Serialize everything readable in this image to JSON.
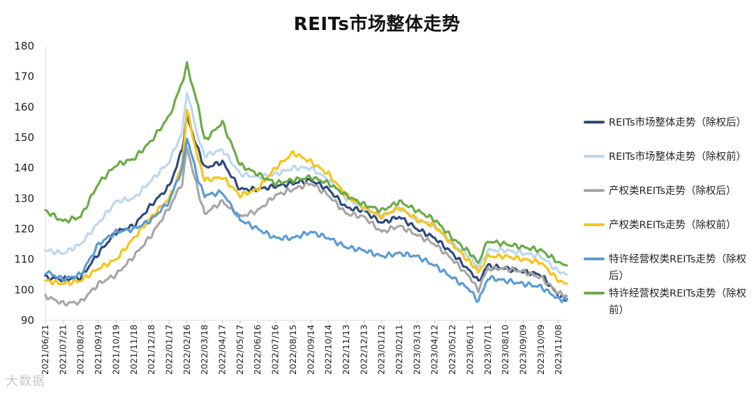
{
  "chart_data": {
    "type": "line",
    "title": "REITs市场整体走势",
    "xlabel": "",
    "ylabel": "",
    "ylim": [
      90,
      180
    ],
    "yticks": [
      90,
      100,
      110,
      120,
      130,
      140,
      150,
      160,
      170,
      180
    ],
    "x_start": "2021/06/21",
    "x_end": "2023/11/22",
    "xtick_labels": [
      "2021/06/21",
      "2021/07/21",
      "2021/08/20",
      "2021/09/19",
      "2021/10/19",
      "2021/11/18",
      "2021/12/18",
      "2022/01/17",
      "2022/02/16",
      "2022/03/18",
      "2022/04/17",
      "2022/05/17",
      "2022/06/16",
      "2022/07/16",
      "2022/08/15",
      "2022/09/14",
      "2022/10/14",
      "2022/11/13",
      "2022/12/13",
      "2023/01/12",
      "2023/02/11",
      "2023/03/13",
      "2023/04/12",
      "2023/05/12",
      "2023/06/11",
      "2023/07/11",
      "2023/08/10",
      "2023/09/09",
      "2023/10/09",
      "2023/11/08"
    ],
    "legend_position": "right",
    "grid": false,
    "series": [
      {
        "name": "REITs市场整体走势（除权后）",
        "color": "#2e4a7e",
        "points": [
          [
            "2021/06/21",
            104
          ],
          [
            "2021/07/21",
            103.5
          ],
          [
            "2021/08/20",
            104
          ],
          [
            "2021/09/19",
            112
          ],
          [
            "2021/10/19",
            119
          ],
          [
            "2021/11/18",
            121
          ],
          [
            "2021/12/18",
            128
          ],
          [
            "2022/01/17",
            134
          ],
          [
            "2022/02/08",
            146
          ],
          [
            "2022/02/16",
            157
          ],
          [
            "2022/03/07",
            146
          ],
          [
            "2022/03/18",
            140
          ],
          [
            "2022/04/17",
            142
          ],
          [
            "2022/05/17",
            133
          ],
          [
            "2022/06/16",
            133
          ],
          [
            "2022/07/16",
            134
          ],
          [
            "2022/08/15",
            135
          ],
          [
            "2022/09/14",
            136
          ],
          [
            "2022/10/14",
            133
          ],
          [
            "2022/11/13",
            127
          ],
          [
            "2022/12/13",
            126
          ],
          [
            "2023/01/12",
            122
          ],
          [
            "2023/02/11",
            124
          ],
          [
            "2023/03/13",
            120
          ],
          [
            "2023/04/12",
            117
          ],
          [
            "2023/05/12",
            112
          ],
          [
            "2023/06/11",
            106
          ],
          [
            "2023/06/25",
            103
          ],
          [
            "2023/07/11",
            108
          ],
          [
            "2023/08/10",
            107
          ],
          [
            "2023/09/09",
            106
          ],
          [
            "2023/10/09",
            105
          ],
          [
            "2023/11/08",
            98
          ],
          [
            "2023/11/22",
            97
          ]
        ]
      },
      {
        "name": "REITs市场整体走势（除权前）",
        "color": "#bcd7ef",
        "points": [
          [
            "2021/06/21",
            113
          ],
          [
            "2021/07/21",
            112
          ],
          [
            "2021/08/20",
            115
          ],
          [
            "2021/09/19",
            122
          ],
          [
            "2021/10/19",
            129
          ],
          [
            "2021/11/18",
            130
          ],
          [
            "2021/12/18",
            136
          ],
          [
            "2022/01/17",
            142
          ],
          [
            "2022/02/08",
            152
          ],
          [
            "2022/02/16",
            165
          ],
          [
            "2022/03/07",
            150
          ],
          [
            "2022/03/18",
            144
          ],
          [
            "2022/04/17",
            146
          ],
          [
            "2022/05/17",
            138
          ],
          [
            "2022/06/16",
            137
          ],
          [
            "2022/07/16",
            138
          ],
          [
            "2022/08/15",
            140
          ],
          [
            "2022/09/14",
            140
          ],
          [
            "2022/10/14",
            136
          ],
          [
            "2022/11/13",
            130
          ],
          [
            "2022/12/13",
            127
          ],
          [
            "2023/01/12",
            124
          ],
          [
            "2023/02/11",
            127
          ],
          [
            "2023/03/13",
            123
          ],
          [
            "2023/04/12",
            121
          ],
          [
            "2023/05/12",
            115
          ],
          [
            "2023/06/11",
            111
          ],
          [
            "2023/06/25",
            107
          ],
          [
            "2023/07/11",
            113
          ],
          [
            "2023/08/10",
            113
          ],
          [
            "2023/09/09",
            112
          ],
          [
            "2023/10/09",
            111
          ],
          [
            "2023/11/08",
            106
          ],
          [
            "2023/11/22",
            105
          ]
        ]
      },
      {
        "name": "产权类REITs走势（除权后）",
        "color": "#a6a6a6",
        "points": [
          [
            "2021/06/21",
            98
          ],
          [
            "2021/07/21",
            95.5
          ],
          [
            "2021/08/20",
            96
          ],
          [
            "2021/09/19",
            102
          ],
          [
            "2021/10/19",
            105
          ],
          [
            "2021/11/18",
            111
          ],
          [
            "2021/12/18",
            118
          ],
          [
            "2022/01/17",
            127
          ],
          [
            "2022/02/08",
            135
          ],
          [
            "2022/02/16",
            147
          ],
          [
            "2022/03/07",
            132
          ],
          [
            "2022/03/18",
            125
          ],
          [
            "2022/04/17",
            129
          ],
          [
            "2022/05/17",
            124
          ],
          [
            "2022/06/16",
            126
          ],
          [
            "2022/07/16",
            131
          ],
          [
            "2022/08/15",
            133
          ],
          [
            "2022/09/14",
            135
          ],
          [
            "2022/10/14",
            131
          ],
          [
            "2022/11/13",
            125
          ],
          [
            "2022/12/13",
            124
          ],
          [
            "2023/01/12",
            119
          ],
          [
            "2023/02/11",
            121
          ],
          [
            "2023/03/13",
            118
          ],
          [
            "2023/04/12",
            115
          ],
          [
            "2023/05/12",
            110
          ],
          [
            "2023/06/11",
            104
          ],
          [
            "2023/06/25",
            100
          ],
          [
            "2023/07/11",
            107
          ],
          [
            "2023/08/10",
            107
          ],
          [
            "2023/09/09",
            106
          ],
          [
            "2023/10/09",
            104
          ],
          [
            "2023/11/08",
            99
          ],
          [
            "2023/11/22",
            98
          ]
        ]
      },
      {
        "name": "产权类REITs走势（除权前）",
        "color": "#f5c518",
        "points": [
          [
            "2021/06/21",
            103
          ],
          [
            "2021/07/21",
            102
          ],
          [
            "2021/08/20",
            103
          ],
          [
            "2021/09/19",
            107
          ],
          [
            "2021/10/19",
            110
          ],
          [
            "2021/11/18",
            117
          ],
          [
            "2021/12/18",
            124
          ],
          [
            "2022/01/17",
            130
          ],
          [
            "2022/02/08",
            141
          ],
          [
            "2022/02/16",
            159
          ],
          [
            "2022/03/07",
            143
          ],
          [
            "2022/03/18",
            136
          ],
          [
            "2022/04/17",
            137
          ],
          [
            "2022/05/17",
            131
          ],
          [
            "2022/06/16",
            133
          ],
          [
            "2022/07/16",
            140
          ],
          [
            "2022/08/15",
            145
          ],
          [
            "2022/09/14",
            142
          ],
          [
            "2022/10/14",
            138
          ],
          [
            "2022/11/13",
            131
          ],
          [
            "2022/12/13",
            127
          ],
          [
            "2023/01/12",
            124
          ],
          [
            "2023/02/11",
            127
          ],
          [
            "2023/03/13",
            123
          ],
          [
            "2023/04/12",
            121
          ],
          [
            "2023/05/12",
            115
          ],
          [
            "2023/06/11",
            109
          ],
          [
            "2023/06/25",
            106
          ],
          [
            "2023/07/11",
            111
          ],
          [
            "2023/08/10",
            111
          ],
          [
            "2023/09/09",
            110
          ],
          [
            "2023/10/09",
            109
          ],
          [
            "2023/11/08",
            103
          ],
          [
            "2023/11/22",
            102
          ]
        ]
      },
      {
        "name": "特许经营权类REITs走势（除权后）",
        "color": "#5b9bd5",
        "points": [
          [
            "2021/06/21",
            106
          ],
          [
            "2021/07/21",
            103.5
          ],
          [
            "2021/08/20",
            105
          ],
          [
            "2021/09/19",
            115
          ],
          [
            "2021/10/19",
            119
          ],
          [
            "2021/11/18",
            120
          ],
          [
            "2021/12/18",
            123
          ],
          [
            "2022/01/17",
            129
          ],
          [
            "2022/02/08",
            140
          ],
          [
            "2022/02/16",
            150
          ],
          [
            "2022/03/07",
            136
          ],
          [
            "2022/03/18",
            131
          ],
          [
            "2022/04/17",
            132
          ],
          [
            "2022/05/17",
            123
          ],
          [
            "2022/06/16",
            120
          ],
          [
            "2022/07/16",
            117
          ],
          [
            "2022/08/15",
            117
          ],
          [
            "2022/09/14",
            119
          ],
          [
            "2022/10/14",
            117
          ],
          [
            "2022/11/13",
            114
          ],
          [
            "2022/12/13",
            113
          ],
          [
            "2023/01/12",
            111
          ],
          [
            "2023/02/11",
            112
          ],
          [
            "2023/03/13",
            111
          ],
          [
            "2023/04/12",
            108
          ],
          [
            "2023/05/12",
            104
          ],
          [
            "2023/06/11",
            100
          ],
          [
            "2023/06/25",
            96
          ],
          [
            "2023/07/11",
            104
          ],
          [
            "2023/08/10",
            103
          ],
          [
            "2023/09/09",
            102
          ],
          [
            "2023/10/09",
            101
          ],
          [
            "2023/11/08",
            97
          ],
          [
            "2023/11/22",
            96.5
          ]
        ]
      },
      {
        "name": "特许经营权类REITs走势（除权前）",
        "color": "#6aab45",
        "points": [
          [
            "2021/06/21",
            126
          ],
          [
            "2021/07/21",
            122.5
          ],
          [
            "2021/08/20",
            124
          ],
          [
            "2021/09/19",
            135
          ],
          [
            "2021/10/19",
            141
          ],
          [
            "2021/11/18",
            143
          ],
          [
            "2021/12/18",
            149
          ],
          [
            "2022/01/17",
            157
          ],
          [
            "2022/02/08",
            168
          ],
          [
            "2022/02/16",
            174
          ],
          [
            "2022/03/07",
            160
          ],
          [
            "2022/03/18",
            149
          ],
          [
            "2022/04/17",
            155
          ],
          [
            "2022/05/17",
            141
          ],
          [
            "2022/06/16",
            138
          ],
          [
            "2022/07/16",
            135
          ],
          [
            "2022/08/15",
            136
          ],
          [
            "2022/09/14",
            137
          ],
          [
            "2022/10/14",
            135
          ],
          [
            "2022/11/13",
            131
          ],
          [
            "2022/12/13",
            128
          ],
          [
            "2023/01/12",
            126
          ],
          [
            "2023/02/11",
            129
          ],
          [
            "2023/03/13",
            126
          ],
          [
            "2023/04/12",
            123
          ],
          [
            "2023/05/12",
            117
          ],
          [
            "2023/06/11",
            112
          ],
          [
            "2023/06/25",
            109
          ],
          [
            "2023/07/11",
            116
          ],
          [
            "2023/08/10",
            115
          ],
          [
            "2023/09/09",
            114
          ],
          [
            "2023/10/09",
            113
          ],
          [
            "2023/11/08",
            109
          ],
          [
            "2023/11/22",
            108
          ]
        ]
      }
    ]
  },
  "legend": {
    "items": [
      {
        "label": "REITs市场整体走势（除权后）",
        "color": "#2e4a7e"
      },
      {
        "label": "REITs市场整体走势（除权前）",
        "color": "#bcd7ef"
      },
      {
        "label": "产权类REITs走势（除权后）",
        "color": "#a6a6a6"
      },
      {
        "label": "产权类REITs走势（除权前）",
        "color": "#f5c518"
      },
      {
        "label": "特许经营权类REITs走势（除权后）",
        "color": "#5b9bd5"
      },
      {
        "label": "特许经营权类REITs走势（除权前）",
        "color": "#6aab45"
      }
    ]
  },
  "watermark": "大数据"
}
